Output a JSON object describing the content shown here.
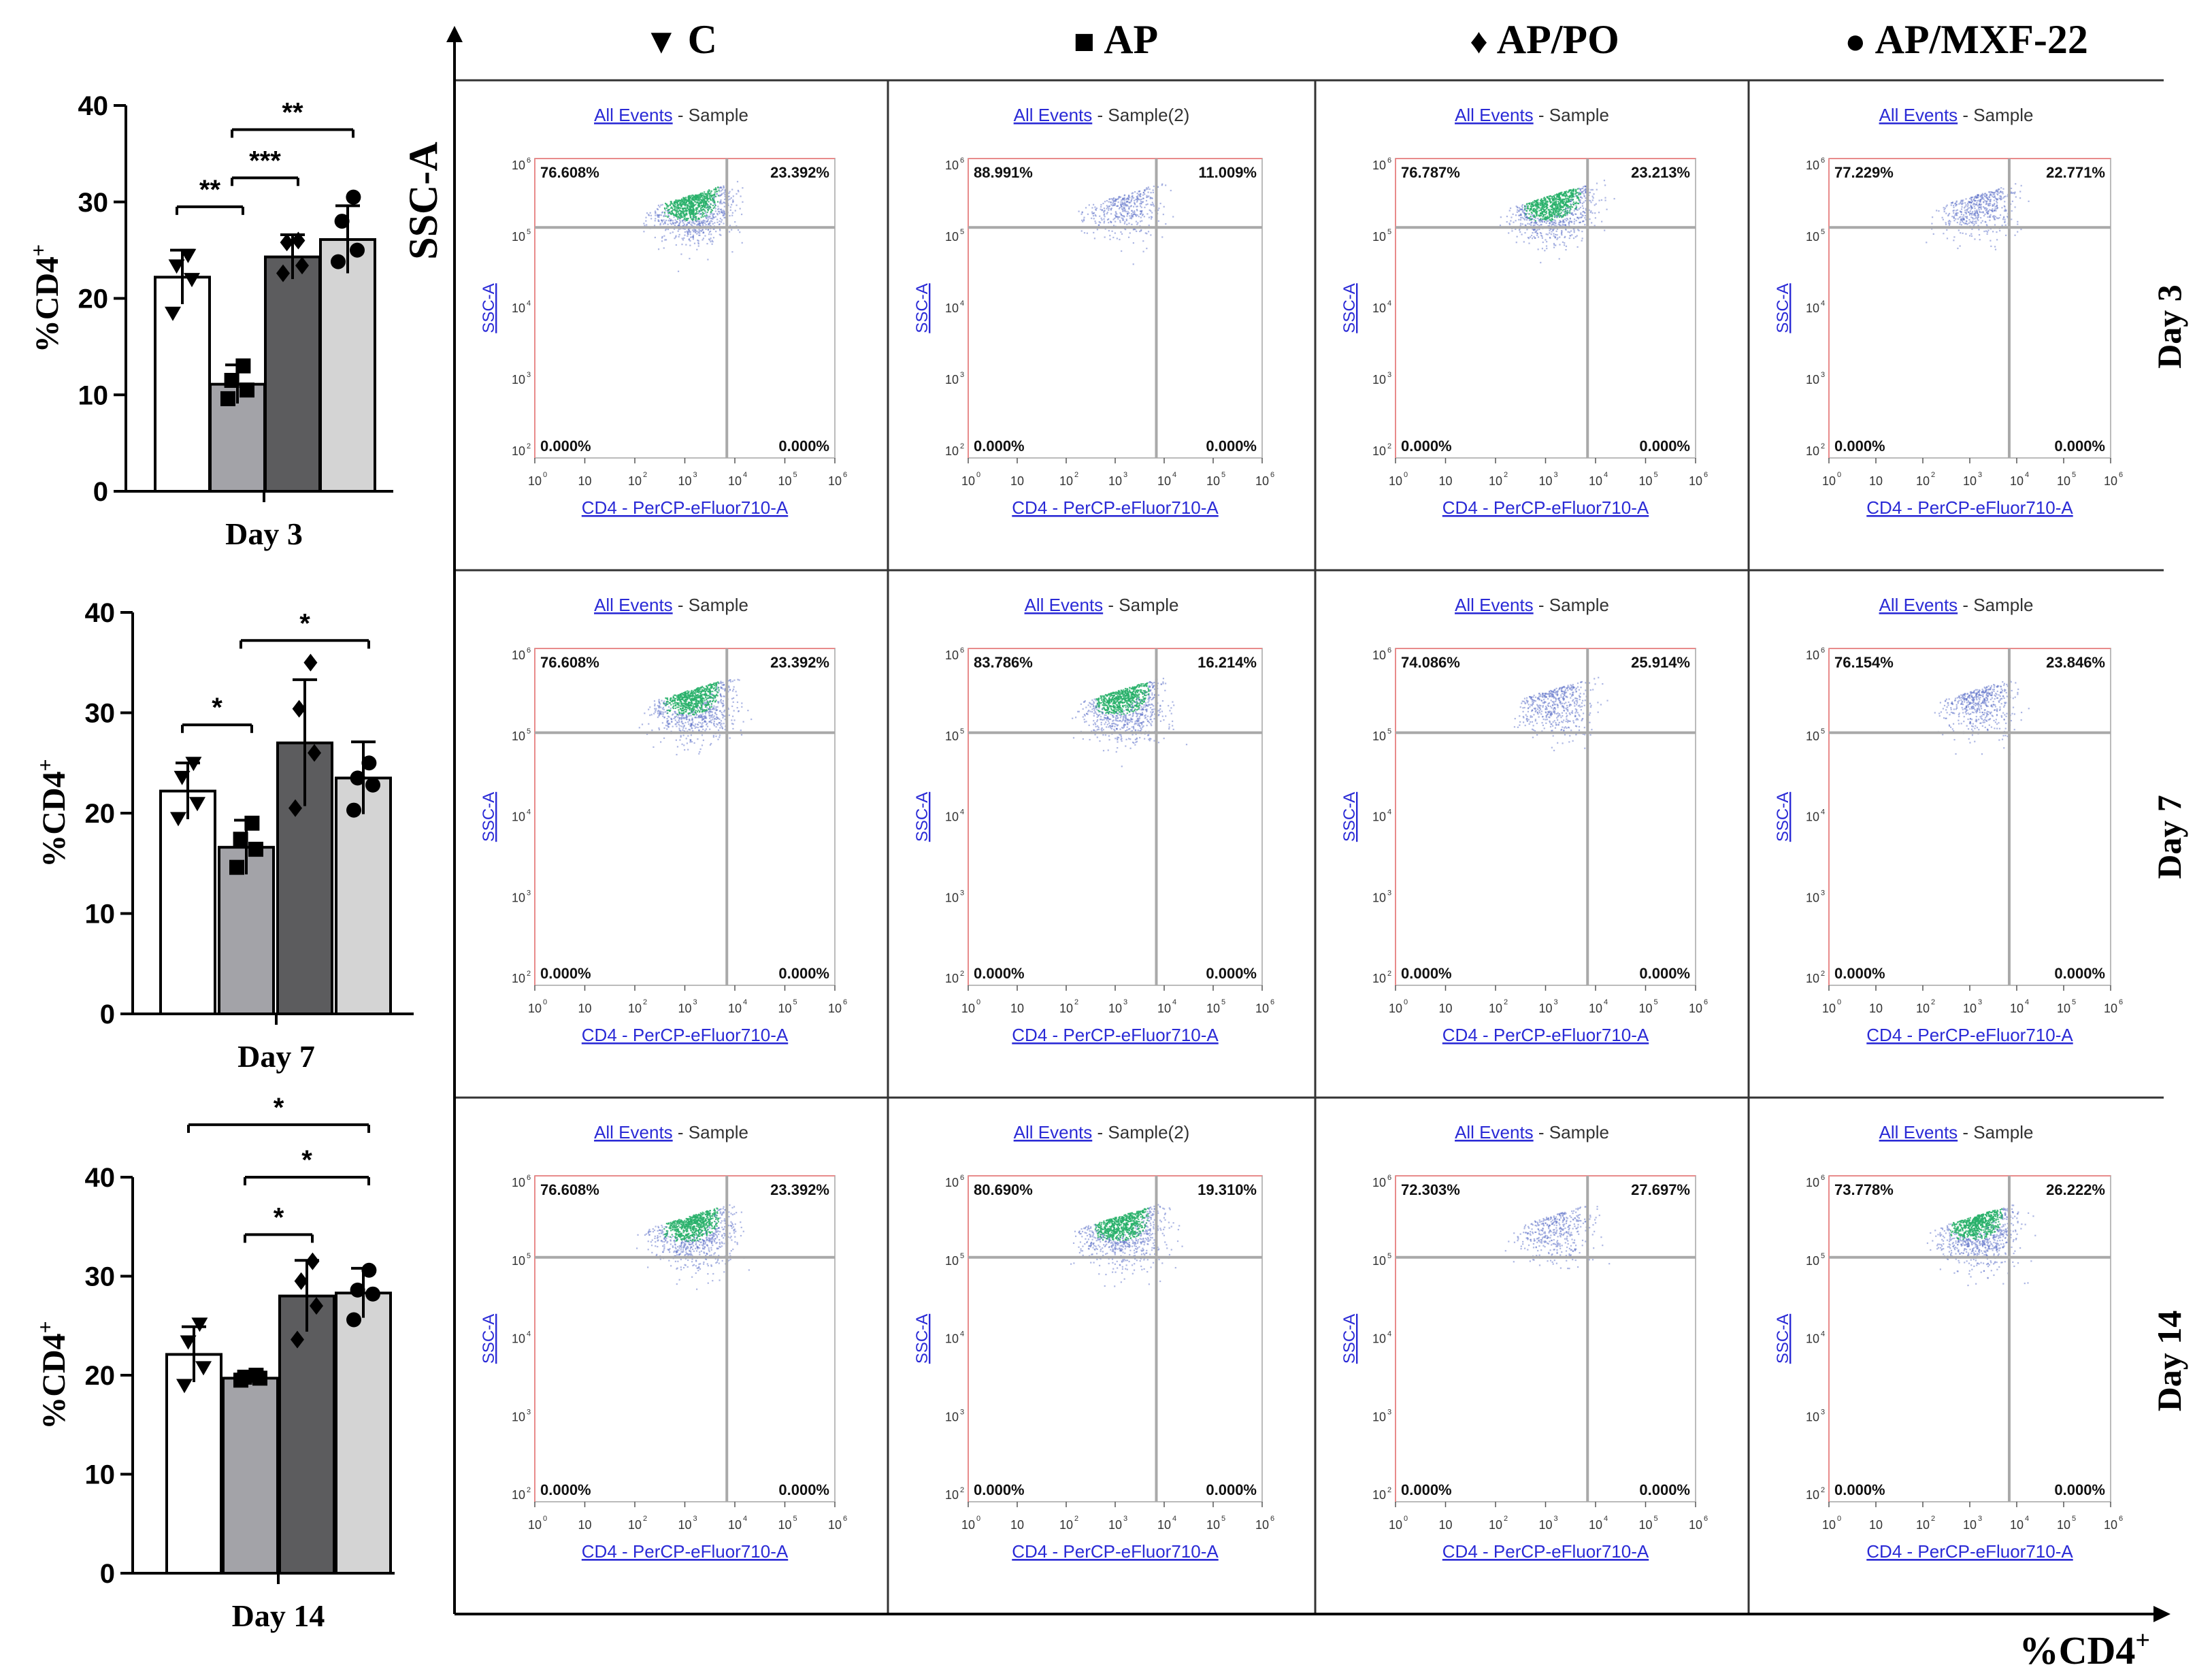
{
  "chart_data": {
    "type": "bar",
    "bar_charts": [
      {
        "title": "Day 3",
        "ylabel": "%CD4+",
        "ylim": [
          0,
          40
        ],
        "yticks": [
          "0",
          "10",
          "20",
          "30",
          "40"
        ],
        "categories": [
          "C",
          "AP",
          "AP/PO",
          "AP/MXF-22"
        ],
        "values": [
          22.2,
          11.1,
          24.3,
          26.1
        ],
        "errors": [
          2.8,
          2.0,
          2.3,
          3.5
        ],
        "points": [
          [
            18.5,
            22,
            23.4,
            24.5
          ],
          [
            9.6,
            10.5,
            11.5,
            13
          ],
          [
            22.6,
            23.4,
            25.8,
            26
          ],
          [
            23.8,
            25,
            28,
            30.5
          ]
        ],
        "significance": [
          {
            "from": 0,
            "to": 1,
            "label": "**",
            "level": 29.5
          },
          {
            "from": 1,
            "to": 2,
            "label": "***",
            "level": 32.5
          },
          {
            "from": 1,
            "to": 3,
            "label": "**",
            "level": 37.5
          }
        ]
      },
      {
        "title": "Day 7",
        "ylabel": "%CD4+",
        "ylim": [
          0,
          40
        ],
        "yticks": [
          "0",
          "10",
          "20",
          "30",
          "40"
        ],
        "categories": [
          "C",
          "AP",
          "AP/PO",
          "AP/MXF-22"
        ],
        "values": [
          22.2,
          16.6,
          27.0,
          23.5
        ],
        "errors": [
          2.8,
          2.7,
          6.3,
          3.6
        ],
        "points": [
          [
            19.5,
            21,
            23.6,
            25
          ],
          [
            14.6,
            16.4,
            17.4,
            19
          ],
          [
            20.5,
            26,
            30.4,
            35
          ],
          [
            20.3,
            22.8,
            23.5,
            25
          ]
        ],
        "significance": [
          {
            "from": 0,
            "to": 1,
            "label": "*",
            "level": 28.8
          },
          {
            "from": 1,
            "to": 3,
            "label": "*",
            "level": 37.2
          }
        ]
      },
      {
        "title": "Day 14",
        "ylabel": "%CD4+",
        "ylim": [
          0,
          40
        ],
        "yticks": [
          "0",
          "10",
          "20",
          "30",
          "40"
        ],
        "categories": [
          "C",
          "AP",
          "AP/PO",
          "AP/MXF-22"
        ],
        "values": [
          22.1,
          19.7,
          28.0,
          28.3
        ],
        "errors": [
          2.8,
          0.4,
          3.6,
          2.5
        ],
        "points": [
          [
            19,
            20.8,
            23.4,
            25.2
          ],
          [
            19.5,
            19.7,
            19.8,
            20
          ],
          [
            23.6,
            27,
            29.5,
            31.5
          ],
          [
            25.6,
            28.2,
            28.6,
            30.6
          ]
        ],
        "significance": [
          {
            "from": 1,
            "to": 2,
            "label": "*",
            "level": 34.2
          },
          {
            "from": 1,
            "to": 3,
            "label": "*",
            "level": 40.0
          },
          {
            "from": 0,
            "to": 3,
            "label": "*",
            "level": 45.3
          }
        ]
      }
    ],
    "group_headers": [
      {
        "symbol": "▼",
        "label": "C"
      },
      {
        "symbol": "■",
        "label": "AP"
      },
      {
        "symbol": "♦",
        "label": "AP/PO"
      },
      {
        "symbol": "●",
        "label": "AP/MXF-22"
      }
    ],
    "row_labels": [
      "Day 3",
      "Day 7",
      "Day 14"
    ],
    "grid_y_axis_label": "SSC-A",
    "grid_x_axis_label": "%CD4+",
    "flow_plots": [
      [
        {
          "header_link": "All Events",
          "header_sample": " - Sample",
          "ul": "76.608%",
          "ur": "23.392%",
          "ll": "0.000%",
          "lr": "0.000%",
          "density": 1.0
        },
        {
          "header_link": "All Events",
          "header_sample": " - Sample(2)",
          "ul": "88.991%",
          "ur": "11.009%",
          "ll": "0.000%",
          "lr": "0.000%",
          "density": 0.25
        },
        {
          "header_link": "All Events",
          "header_sample": " - Sample",
          "ul": "76.787%",
          "ur": "23.213%",
          "ll": "0.000%",
          "lr": "0.000%",
          "density": 1.0
        },
        {
          "header_link": "All Events",
          "header_sample": " - Sample",
          "ul": "77.229%",
          "ur": "22.771%",
          "ll": "0.000%",
          "lr": "0.000%",
          "density": 0.35
        }
      ],
      [
        {
          "header_link": "All Events",
          "header_sample": " - Sample",
          "ul": "76.608%",
          "ur": "23.392%",
          "ll": "0.000%",
          "lr": "0.000%",
          "density": 1.0
        },
        {
          "header_link": "All Events",
          "header_sample": " - Sample",
          "ul": "83.786%",
          "ur": "16.214%",
          "ll": "0.000%",
          "lr": "0.000%",
          "density": 1.0
        },
        {
          "header_link": "All Events",
          "header_sample": " - Sample",
          "ul": "74.086%",
          "ur": "25.914%",
          "ll": "0.000%",
          "lr": "0.000%",
          "density": 0.35
        },
        {
          "header_link": "All Events",
          "header_sample": " - Sample",
          "ul": "76.154%",
          "ur": "23.846%",
          "ll": "0.000%",
          "lr": "0.000%",
          "density": 0.35
        }
      ],
      [
        {
          "header_link": "All Events",
          "header_sample": " - Sample",
          "ul": "76.608%",
          "ur": "23.392%",
          "ll": "0.000%",
          "lr": "0.000%",
          "density": 1.0
        },
        {
          "header_link": "All Events",
          "header_sample": " - Sample(2)",
          "ul": "80.690%",
          "ur": "19.310%",
          "ll": "0.000%",
          "lr": "0.000%",
          "density": 1.0
        },
        {
          "header_link": "All Events",
          "header_sample": " - Sample",
          "ul": "72.303%",
          "ur": "27.697%",
          "ll": "0.000%",
          "lr": "0.000%",
          "density": 0.25
        },
        {
          "header_link": "All Events",
          "header_sample": " - Sample",
          "ul": "73.778%",
          "ur": "26.222%",
          "ll": "0.000%",
          "lr": "0.000%",
          "density": 1.0
        }
      ]
    ],
    "flow_axis": {
      "xlabel": "CD4 - PerCP-eFluor710-A",
      "ylabel": "SSC-A",
      "tick_base": "10"
    }
  },
  "colors": {
    "bar_fills": [
      "#ffffff",
      "#a3a3a8",
      "#5c5c5e",
      "#d4d4d4"
    ],
    "link_blue": "#2a2ad6",
    "gate_line": "#a9a9a9",
    "gate_red": "#e88b8b",
    "dot_blue": "#5a6ec8",
    "dot_green": "#28b06a"
  }
}
